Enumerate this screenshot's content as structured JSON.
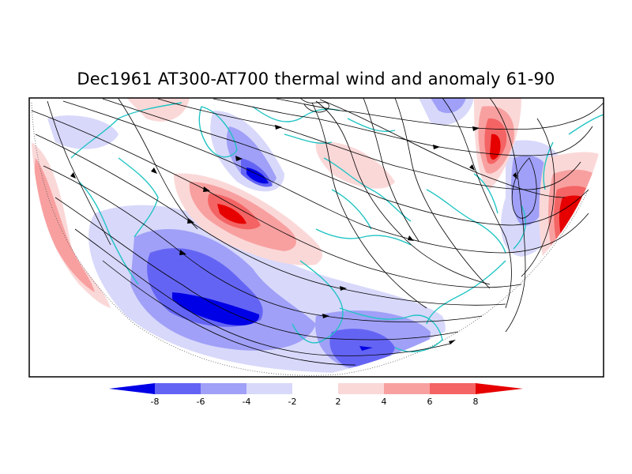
{
  "title": "Dec1961 AT300-AT700 thermal wind and anomaly 61-90",
  "colors": {
    "neg8": "#0000e6",
    "neg6": "#6464f4",
    "neg4": "#a0a0f8",
    "neg2": "#d8d8fb",
    "zero": "#ffffff",
    "pos2": "#fbd8d8",
    "pos4": "#f8a0a0",
    "pos6": "#f46464",
    "pos8": "#e60000",
    "coast": "#22c4c4",
    "stream": "#000000"
  },
  "colorbar": {
    "ticks": [
      "-8",
      "-6",
      "-4",
      "-2",
      "2",
      "4",
      "6",
      "8"
    ]
  }
}
